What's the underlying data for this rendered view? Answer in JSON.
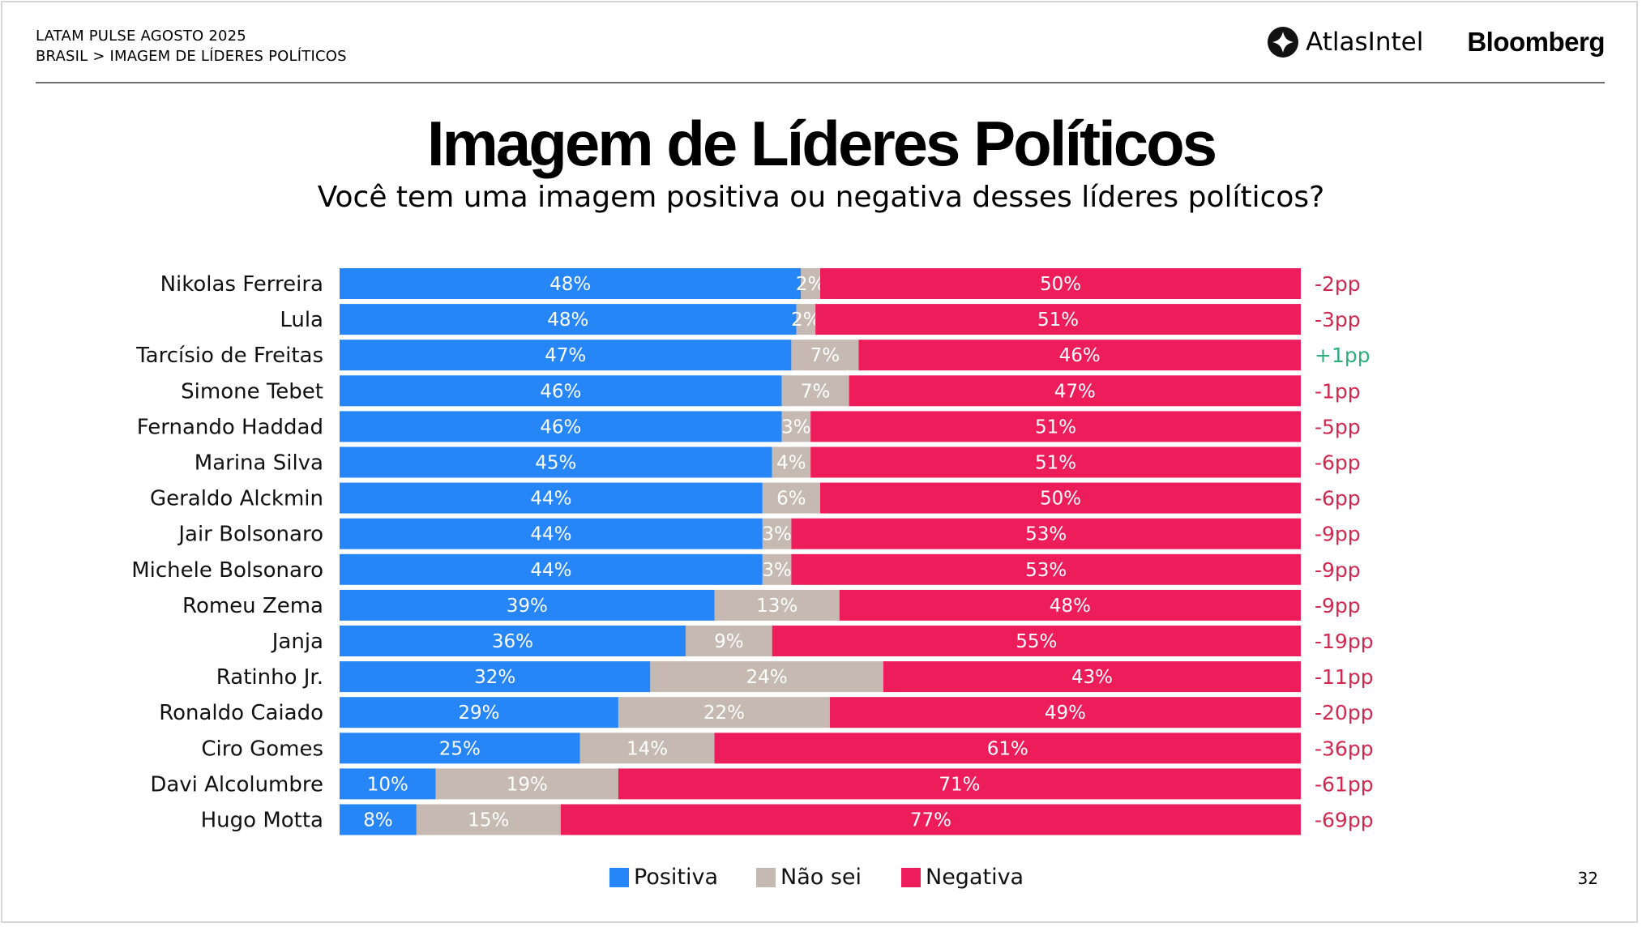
{
  "header": {
    "line1": "LATAM PULSE AGOSTO 2025",
    "line2": "BRASIL > IMAGEM DE LÍDERES POLÍTICOS"
  },
  "logos": {
    "atlas": "AtlasIntel",
    "bloomberg": "Bloomberg"
  },
  "page_number": "32",
  "colors": {
    "positiva": "#2686F7",
    "nao_sei": "#C6B9B1",
    "negativa": "#EC1D5A",
    "delta_neg": "#D0284F",
    "delta_pos": "#2FAE7E"
  },
  "chart_data": {
    "type": "bar",
    "orientation": "horizontal",
    "stacked": true,
    "title": "Imagem de Líderes Políticos",
    "subtitle": "Você tem uma imagem positiva ou negativa desses líderes políticos?",
    "xlabel": "",
    "ylabel": "",
    "grid": false,
    "legend_position": "bottom-center",
    "categories": [
      "Nikolas Ferreira",
      "Lula",
      "Tarcísio de Freitas",
      "Simone Tebet",
      "Fernando Haddad",
      "Marina Silva",
      "Geraldo Alckmin",
      "Jair Bolsonaro",
      "Michele Bolsonaro",
      "Romeu Zema",
      "Janja",
      "Ratinho Jr.",
      "Ronaldo Caiado",
      "Ciro Gomes",
      "Davi Alcolumbre",
      "Hugo Motta"
    ],
    "series": [
      {
        "name": "Positiva",
        "values": [
          48,
          48,
          47,
          46,
          46,
          45,
          44,
          44,
          44,
          39,
          36,
          32,
          29,
          25,
          10,
          8
        ]
      },
      {
        "name": "Não sei",
        "values": [
          2,
          2,
          7,
          7,
          3,
          4,
          6,
          3,
          3,
          13,
          9,
          24,
          22,
          14,
          19,
          15
        ]
      },
      {
        "name": "Negativa",
        "values": [
          50,
          51,
          46,
          47,
          51,
          51,
          50,
          53,
          53,
          48,
          55,
          43,
          49,
          61,
          71,
          77
        ]
      }
    ],
    "net_labels": [
      "-2pp",
      "-3pp",
      "+1pp",
      "-1pp",
      "-5pp",
      "-6pp",
      "-6pp",
      "-9pp",
      "-9pp",
      "-9pp",
      "-19pp",
      "-11pp",
      "-20pp",
      "-36pp",
      "-61pp",
      "-69pp"
    ],
    "value_suffix": "%"
  }
}
